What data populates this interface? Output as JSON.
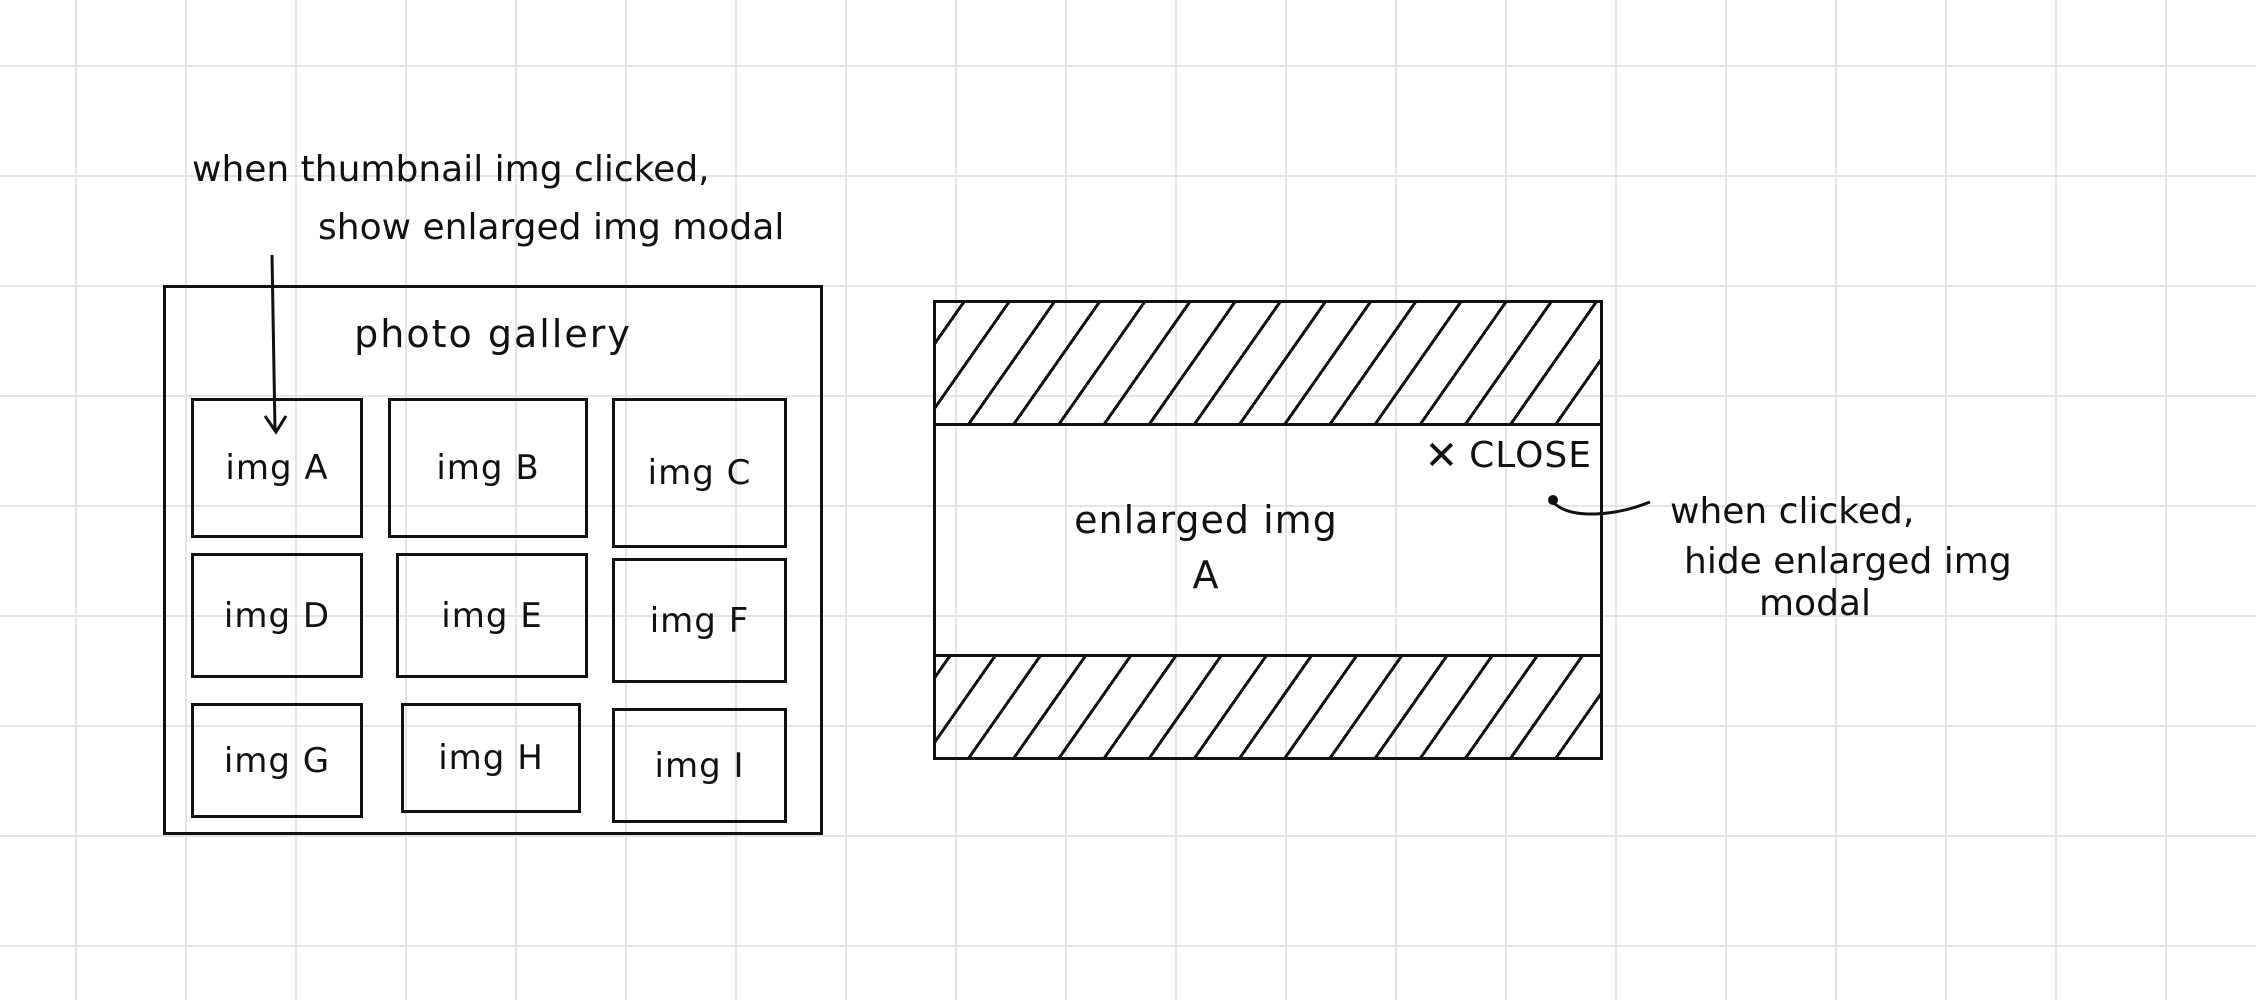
{
  "annotations": {
    "thumbnail_click": [
      "when thumbnail img clicked,",
      "show enlarged img modal"
    ],
    "close_click": [
      "when clicked,",
      "hide enlarged img",
      "modal"
    ]
  },
  "gallery": {
    "title": "photo gallery",
    "thumbnails": [
      "img A",
      "img B",
      "img C",
      "img D",
      "img E",
      "img F",
      "img G",
      "img H",
      "img I"
    ]
  },
  "modal": {
    "close_label": "CLOSE",
    "close_icon": "close-icon",
    "enlarged_label": "enlarged img A"
  }
}
